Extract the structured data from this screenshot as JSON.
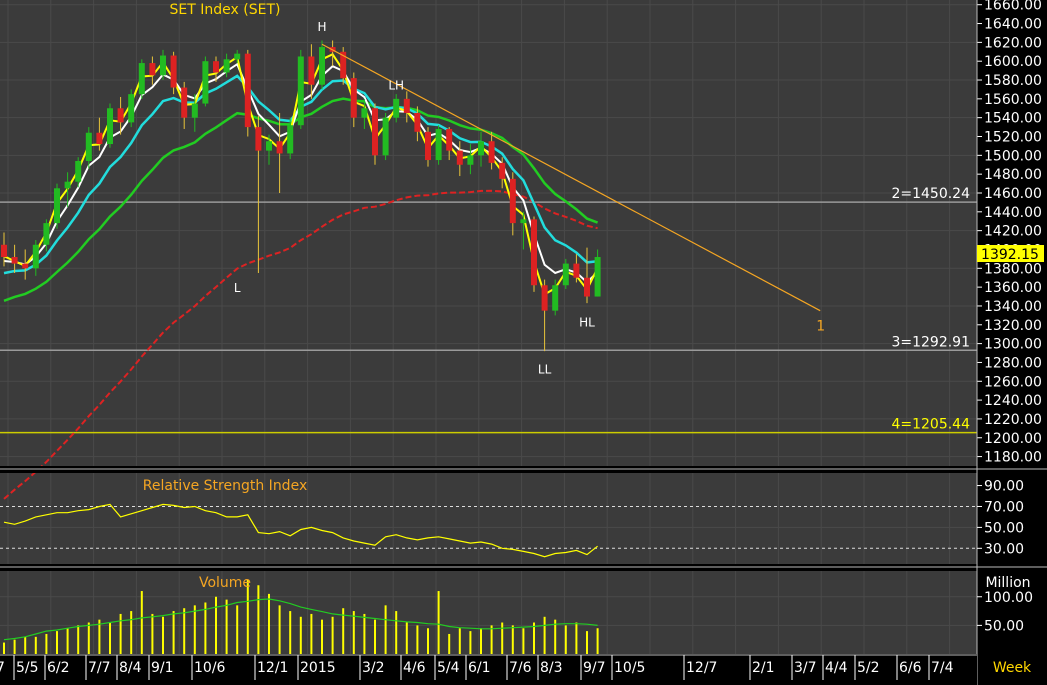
{
  "chart_data": {
    "type": "candlestick",
    "title": "SET Index (SET)",
    "period_label": "Week",
    "x_labels": [
      "5/5",
      "6/2",
      "7/7",
      "8/4",
      "9/1",
      "10/6",
      "12/1",
      "2015",
      "3/2",
      "4/6",
      "5/4",
      "6/1",
      "7/6",
      "8/3",
      "9/7",
      "10/5",
      "12/7",
      "2/1",
      "3/7",
      "4/4",
      "5/2",
      "6/6",
      "7/4"
    ],
    "first_partial_label": "7",
    "price_axis": {
      "min": 1170,
      "max": 1665,
      "ticks": [
        1180,
        1200,
        1220,
        1240,
        1260,
        1280,
        1300,
        1320,
        1340,
        1360,
        1380,
        1400,
        1420,
        1440,
        1460,
        1480,
        1500,
        1520,
        1540,
        1560,
        1580,
        1600,
        1620,
        1640,
        1660
      ]
    },
    "last_price": "1392.15",
    "levels": [
      {
        "label": "2=1450.24",
        "value": 1450.24,
        "color": "#9a9a9a"
      },
      {
        "label": "3=1292.91",
        "value": 1292.91,
        "color": "#9a9a9a"
      },
      {
        "label": "4=1205.44",
        "value": 1205.44,
        "color": "#cccc00"
      }
    ],
    "trendline": {
      "label": "1",
      "from": [
        30,
        1618
      ],
      "to": [
        77,
        1335
      ],
      "color": "#f5a623"
    },
    "annotations": [
      {
        "text": "H",
        "x": 30,
        "y": 1632
      },
      {
        "text": "L",
        "x": 22,
        "y": 1355
      },
      {
        "text": "LH",
        "x": 37,
        "y": 1570
      },
      {
        "text": "LL",
        "x": 51,
        "y": 1268
      },
      {
        "text": "HL",
        "x": 55,
        "y": 1318
      }
    ],
    "candles": [
      {
        "o": 1405,
        "h": 1418,
        "l": 1382,
        "c": 1392
      },
      {
        "o": 1392,
        "h": 1405,
        "l": 1375,
        "c": 1385
      },
      {
        "o": 1385,
        "h": 1400,
        "l": 1368,
        "c": 1380
      },
      {
        "o": 1380,
        "h": 1410,
        "l": 1372,
        "c": 1405
      },
      {
        "o": 1405,
        "h": 1432,
        "l": 1398,
        "c": 1428
      },
      {
        "o": 1428,
        "h": 1470,
        "l": 1422,
        "c": 1465
      },
      {
        "o": 1465,
        "h": 1482,
        "l": 1445,
        "c": 1472
      },
      {
        "o": 1472,
        "h": 1498,
        "l": 1466,
        "c": 1494
      },
      {
        "o": 1494,
        "h": 1530,
        "l": 1486,
        "c": 1524
      },
      {
        "o": 1524,
        "h": 1540,
        "l": 1505,
        "c": 1512
      },
      {
        "o": 1512,
        "h": 1555,
        "l": 1508,
        "c": 1550
      },
      {
        "o": 1550,
        "h": 1562,
        "l": 1522,
        "c": 1535
      },
      {
        "o": 1535,
        "h": 1570,
        "l": 1530,
        "c": 1565
      },
      {
        "o": 1565,
        "h": 1602,
        "l": 1560,
        "c": 1598
      },
      {
        "o": 1598,
        "h": 1605,
        "l": 1575,
        "c": 1585
      },
      {
        "o": 1585,
        "h": 1612,
        "l": 1580,
        "c": 1606
      },
      {
        "o": 1606,
        "h": 1610,
        "l": 1565,
        "c": 1572
      },
      {
        "o": 1572,
        "h": 1578,
        "l": 1528,
        "c": 1540
      },
      {
        "o": 1540,
        "h": 1565,
        "l": 1525,
        "c": 1555
      },
      {
        "o": 1555,
        "h": 1605,
        "l": 1552,
        "c": 1600
      },
      {
        "o": 1600,
        "h": 1605,
        "l": 1578,
        "c": 1588
      },
      {
        "o": 1588,
        "h": 1608,
        "l": 1583,
        "c": 1602
      },
      {
        "o": 1602,
        "h": 1612,
        "l": 1598,
        "c": 1608
      },
      {
        "o": 1608,
        "h": 1612,
        "l": 1520,
        "c": 1530
      },
      {
        "o": 1530,
        "h": 1542,
        "l": 1375,
        "c": 1505
      },
      {
        "o": 1505,
        "h": 1522,
        "l": 1490,
        "c": 1515
      },
      {
        "o": 1515,
        "h": 1545,
        "l": 1460,
        "c": 1502
      },
      {
        "o": 1502,
        "h": 1540,
        "l": 1496,
        "c": 1532
      },
      {
        "o": 1532,
        "h": 1612,
        "l": 1528,
        "c": 1605
      },
      {
        "o": 1605,
        "h": 1618,
        "l": 1560,
        "c": 1575
      },
      {
        "o": 1575,
        "h": 1622,
        "l": 1570,
        "c": 1615
      },
      {
        "o": 1615,
        "h": 1622,
        "l": 1595,
        "c": 1610
      },
      {
        "o": 1610,
        "h": 1615,
        "l": 1575,
        "c": 1582
      },
      {
        "o": 1582,
        "h": 1588,
        "l": 1530,
        "c": 1540
      },
      {
        "o": 1540,
        "h": 1560,
        "l": 1528,
        "c": 1550
      },
      {
        "o": 1550,
        "h": 1555,
        "l": 1490,
        "c": 1500
      },
      {
        "o": 1500,
        "h": 1545,
        "l": 1495,
        "c": 1540
      },
      {
        "o": 1540,
        "h": 1565,
        "l": 1535,
        "c": 1560
      },
      {
        "o": 1560,
        "h": 1568,
        "l": 1535,
        "c": 1545
      },
      {
        "o": 1545,
        "h": 1552,
        "l": 1515,
        "c": 1525
      },
      {
        "o": 1525,
        "h": 1530,
        "l": 1488,
        "c": 1495
      },
      {
        "o": 1495,
        "h": 1532,
        "l": 1490,
        "c": 1528
      },
      {
        "o": 1528,
        "h": 1530,
        "l": 1495,
        "c": 1505
      },
      {
        "o": 1505,
        "h": 1515,
        "l": 1478,
        "c": 1490
      },
      {
        "o": 1490,
        "h": 1512,
        "l": 1480,
        "c": 1500
      },
      {
        "o": 1500,
        "h": 1525,
        "l": 1488,
        "c": 1515
      },
      {
        "o": 1515,
        "h": 1525,
        "l": 1485,
        "c": 1492
      },
      {
        "o": 1492,
        "h": 1498,
        "l": 1465,
        "c": 1475
      },
      {
        "o": 1475,
        "h": 1482,
        "l": 1415,
        "c": 1428
      },
      {
        "o": 1428,
        "h": 1440,
        "l": 1400,
        "c": 1432
      },
      {
        "o": 1432,
        "h": 1435,
        "l": 1355,
        "c": 1362
      },
      {
        "o": 1362,
        "h": 1368,
        "l": 1292,
        "c": 1335
      },
      {
        "o": 1335,
        "h": 1368,
        "l": 1330,
        "c": 1362
      },
      {
        "o": 1362,
        "h": 1390,
        "l": 1358,
        "c": 1385
      },
      {
        "o": 1385,
        "h": 1395,
        "l": 1365,
        "c": 1370
      },
      {
        "o": 1370,
        "h": 1402,
        "l": 1343,
        "c": 1350
      },
      {
        "o": 1350,
        "h": 1400,
        "l": 1350,
        "c": 1392
      }
    ],
    "rsi": {
      "label": "Relative Strength Index",
      "axis": {
        "min": 15,
        "max": 102,
        "ticks": [
          30,
          50,
          70,
          90
        ]
      },
      "ref_lines": [
        70,
        30
      ],
      "values": [
        55,
        53,
        56,
        60,
        62,
        64,
        64,
        66,
        67,
        70,
        72,
        60,
        63,
        66,
        69,
        72,
        71,
        69,
        70,
        66,
        64,
        60,
        60,
        62,
        45,
        44,
        46,
        42,
        48,
        50,
        47,
        45,
        40,
        37,
        35,
        33,
        41,
        43,
        40,
        38,
        40,
        41,
        39,
        37,
        35,
        36,
        34,
        30,
        29,
        27,
        25,
        22,
        25,
        26,
        28,
        24,
        32
      ]
    },
    "volume": {
      "label": "Volume",
      "unit": "Million",
      "axis": {
        "min": 0,
        "max": 145,
        "ticks": [
          50,
          100
        ]
      },
      "values": [
        20,
        25,
        30,
        30,
        35,
        40,
        45,
        50,
        55,
        60,
        55,
        70,
        75,
        110,
        70,
        65,
        75,
        80,
        85,
        90,
        100,
        95,
        85,
        130,
        120,
        105,
        85,
        75,
        65,
        70,
        60,
        65,
        80,
        75,
        70,
        60,
        85,
        75,
        55,
        50,
        45,
        110,
        35,
        45,
        40,
        45,
        50,
        55,
        50,
        45,
        55,
        65,
        60,
        50,
        55,
        40,
        45
      ],
      "ma": [
        25,
        27,
        30,
        35,
        40,
        42,
        45,
        48,
        50,
        52,
        55,
        58,
        60,
        63,
        65,
        67,
        70,
        72,
        75,
        78,
        82,
        85,
        90,
        92,
        95,
        96,
        93,
        88,
        82,
        78,
        74,
        70,
        68,
        66,
        64,
        62,
        60,
        58,
        56,
        55,
        53,
        52,
        48,
        46,
        45,
        44,
        44,
        45,
        46,
        47,
        48,
        50,
        52,
        53,
        53,
        52,
        50
      ]
    },
    "colors": {
      "up": "#22bb22",
      "down": "#dd2222",
      "ma_fast": "#ffff00",
      "ma_slow": "#ffffff",
      "ma_medium": "#22dddd",
      "ma_long": "#22cc22",
      "ma_200": "#dd2222",
      "grid": "#4a4a4a",
      "background": "#3a3a3a",
      "axis_bg": "#000000",
      "trendline": "#f5a623",
      "last_price_bg": "#ffff00"
    }
  }
}
